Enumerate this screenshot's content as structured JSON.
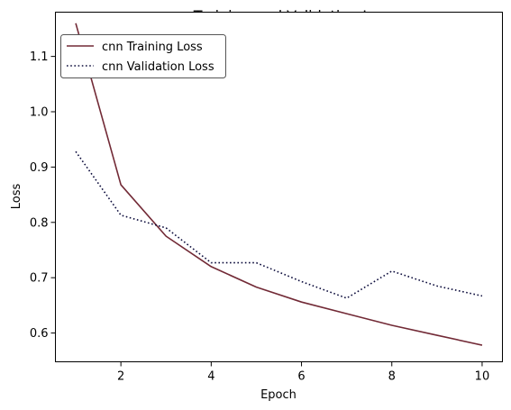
{
  "chart_data": {
    "type": "line",
    "title": "cnn Training and Validation Loss",
    "xlabel": "Epoch",
    "ylabel": "Loss",
    "xlim": [
      0.55,
      10.45
    ],
    "ylim": [
      0.548,
      1.18
    ],
    "xticks": [
      2,
      4,
      6,
      8,
      10
    ],
    "yticks": [
      0.6,
      0.7,
      0.8,
      0.9,
      1.0,
      1.1
    ],
    "xtick_labels": [
      "2",
      "4",
      "6",
      "8",
      "10"
    ],
    "ytick_labels": [
      "0.6",
      "0.7",
      "0.8",
      "0.9",
      "1.0",
      "1.1"
    ],
    "grid": false,
    "legend_position": "top-left",
    "x": [
      1,
      2,
      3,
      4,
      5,
      6,
      7,
      8,
      9,
      10
    ],
    "series": [
      {
        "name": "cnn Training Loss",
        "color": "#722a36",
        "style": "solid",
        "values": [
          1.16,
          0.868,
          0.775,
          0.72,
          0.683,
          0.656,
          0.635,
          0.614,
          0.596,
          0.578
        ]
      },
      {
        "name": "cnn Validation Loss",
        "color": "#0b0b3b",
        "style": "dotted",
        "values": [
          0.928,
          0.813,
          0.79,
          0.727,
          0.727,
          0.693,
          0.663,
          0.712,
          0.685,
          0.667
        ]
      }
    ]
  }
}
